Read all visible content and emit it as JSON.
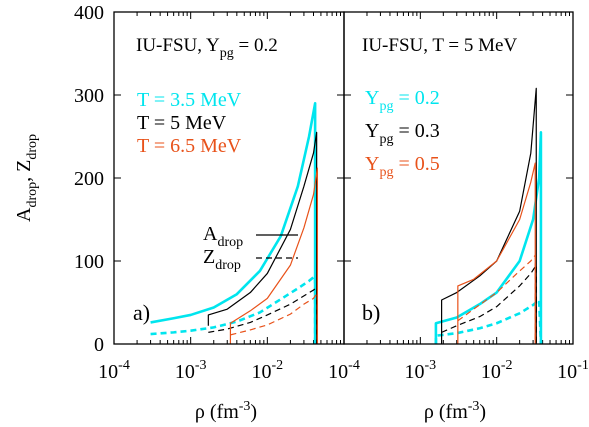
{
  "chart_data": {
    "type": "line",
    "y_axis_label": {
      "main": "A",
      "sub": "drop",
      "sep": ", ",
      "main2": "Z",
      "sub2": "drop"
    },
    "x_axis_label": {
      "main": "ρ (fm",
      "sup": "-3",
      "close": ")"
    },
    "ylim": [
      0,
      400
    ],
    "xlim": [
      0.0001,
      0.1
    ],
    "x_scale": "log",
    "y_ticks": [
      "0",
      "100",
      "200",
      "300",
      "400"
    ],
    "x_ticks_left": [
      {
        "base": "10",
        "exp": "-4"
      },
      {
        "base": "10",
        "exp": "-3"
      },
      {
        "base": "10",
        "exp": "-2"
      }
    ],
    "x_ticks_right": [
      {
        "base": "10",
        "exp": "-4"
      },
      {
        "base": "10",
        "exp": "-3"
      },
      {
        "base": "10",
        "exp": "-2"
      },
      {
        "base": "10",
        "exp": "-1"
      }
    ],
    "line_style_legend": [
      {
        "main": "A",
        "sub": "drop",
        "style": "solid"
      },
      {
        "main": "Z",
        "sub": "drop",
        "style": "dashed"
      }
    ],
    "panels": [
      {
        "label": "a)",
        "title": {
          "prefix": "IU-FSU, Y",
          "sub": "pg",
          "suffix": " = 0.2"
        },
        "series": [
          {
            "name": "T = 3.5 MeV",
            "color": "#00e5ee",
            "width": 2.6,
            "A": [
              [
                0.0003,
                26
              ],
              [
                0.0006,
                31
              ],
              [
                0.001,
                35
              ],
              [
                0.002,
                44
              ],
              [
                0.004,
                60
              ],
              [
                0.008,
                88
              ],
              [
                0.015,
                130
              ],
              [
                0.025,
                190
              ],
              [
                0.035,
                250
              ],
              [
                0.042,
                290
              ],
              [
                0.042,
                0
              ]
            ],
            "Z": [
              [
                0.0003,
                12
              ],
              [
                0.0006,
                14
              ],
              [
                0.001,
                16
              ],
              [
                0.002,
                20
              ],
              [
                0.004,
                27
              ],
              [
                0.008,
                38
              ],
              [
                0.015,
                54
              ],
              [
                0.025,
                67
              ],
              [
                0.035,
                76
              ],
              [
                0.042,
                82
              ],
              [
                0.042,
                0
              ]
            ]
          },
          {
            "name": "T = 5 MeV",
            "color": "#000000",
            "width": 1.2,
            "A": [
              [
                0.0017,
                22
              ],
              [
                0.0017,
                35
              ],
              [
                0.003,
                42
              ],
              [
                0.006,
                62
              ],
              [
                0.01,
                85
              ],
              [
                0.02,
                138
              ],
              [
                0.03,
                190
              ],
              [
                0.04,
                230
              ],
              [
                0.044,
                255
              ],
              [
                0.044,
                0
              ]
            ],
            "Z": [
              [
                0.0017,
                14
              ],
              [
                0.003,
                18
              ],
              [
                0.006,
                26
              ],
              [
                0.01,
                35
              ],
              [
                0.02,
                48
              ],
              [
                0.03,
                58
              ],
              [
                0.04,
                65
              ],
              [
                0.044,
                68
              ],
              [
                0.044,
                0
              ]
            ]
          },
          {
            "name": "T = 6.5 MeV",
            "color": "#e8521a",
            "width": 1.2,
            "A": [
              [
                0.0033,
                0
              ],
              [
                0.0033,
                25
              ],
              [
                0.006,
                40
              ],
              [
                0.01,
                55
              ],
              [
                0.02,
                95
              ],
              [
                0.03,
                140
              ],
              [
                0.04,
                180
              ],
              [
                0.045,
                212
              ],
              [
                0.045,
                0
              ]
            ],
            "Z": [
              [
                0.0033,
                11
              ],
              [
                0.006,
                17
              ],
              [
                0.01,
                23
              ],
              [
                0.02,
                36
              ],
              [
                0.03,
                48
              ],
              [
                0.04,
                55
              ],
              [
                0.045,
                62
              ],
              [
                0.045,
                0
              ]
            ]
          }
        ]
      },
      {
        "label": "b)",
        "title": {
          "prefix": "IU-FSU, T = 5 MeV",
          "sub": "",
          "suffix": ""
        },
        "series": [
          {
            "name": "Y",
            "name_sub": "pg",
            "name_suffix": " = 0.2",
            "color": "#00e5ee",
            "width": 2.6,
            "A": [
              [
                0.0016,
                0
              ],
              [
                0.0016,
                25
              ],
              [
                0.003,
                32
              ],
              [
                0.006,
                48
              ],
              [
                0.01,
                62
              ],
              [
                0.02,
                100
              ],
              [
                0.03,
                150
              ],
              [
                0.036,
                200
              ],
              [
                0.038,
                255
              ],
              [
                0.038,
                0
              ]
            ],
            "Z": [
              [
                0.0016,
                0
              ],
              [
                0.0016,
                10
              ],
              [
                0.003,
                13
              ],
              [
                0.006,
                19
              ],
              [
                0.01,
                25
              ],
              [
                0.02,
                37
              ],
              [
                0.03,
                47
              ],
              [
                0.036,
                53
              ],
              [
                0.038,
                0
              ]
            ]
          },
          {
            "name": "Y",
            "name_sub": "pg",
            "name_suffix": " = 0.3",
            "color": "#000000",
            "width": 1.2,
            "A": [
              [
                0.0019,
                0
              ],
              [
                0.0019,
                53
              ],
              [
                0.003,
                62
              ],
              [
                0.006,
                82
              ],
              [
                0.01,
                100
              ],
              [
                0.02,
                160
              ],
              [
                0.028,
                230
              ],
              [
                0.033,
                308
              ],
              [
                0.033,
                0
              ]
            ],
            "Z": [
              [
                0.0019,
                14
              ],
              [
                0.003,
                22
              ],
              [
                0.006,
                33
              ],
              [
                0.01,
                45
              ],
              [
                0.02,
                70
              ],
              [
                0.028,
                85
              ],
              [
                0.033,
                95
              ],
              [
                0.033,
                0
              ]
            ]
          },
          {
            "name": "Y",
            "name_sub": "pg",
            "name_suffix": " = 0.5",
            "color": "#e8521a",
            "width": 1.2,
            "A": [
              [
                0.0031,
                0
              ],
              [
                0.0031,
                70
              ],
              [
                0.005,
                78
              ],
              [
                0.01,
                100
              ],
              [
                0.02,
                150
              ],
              [
                0.028,
                195
              ],
              [
                0.032,
                218
              ],
              [
                0.032,
                0
              ]
            ],
            "Z": [
              [
                0.0031,
                28
              ],
              [
                0.005,
                42
              ],
              [
                0.01,
                62
              ],
              [
                0.02,
                88
              ],
              [
                0.028,
                100
              ],
              [
                0.032,
                107
              ],
              [
                0.032,
                0
              ]
            ]
          }
        ]
      }
    ]
  }
}
